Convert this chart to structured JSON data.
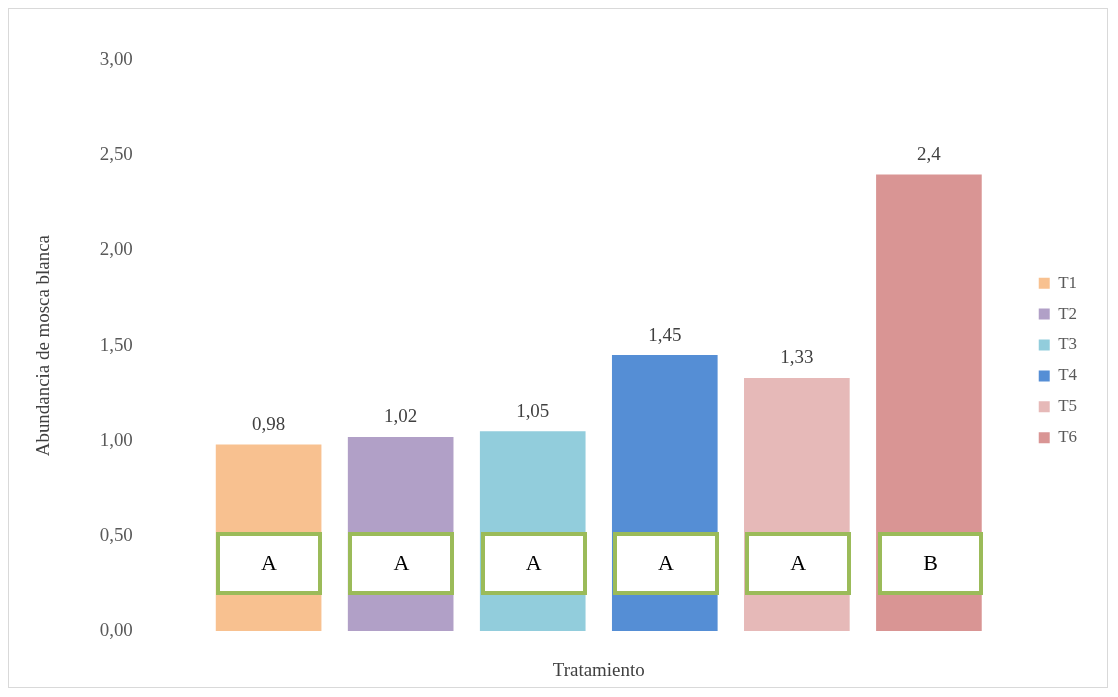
{
  "chart_data": {
    "type": "bar",
    "xlabel": "Tratamiento",
    "ylabel": "Abundancia de mosca blanca",
    "categories": [
      null
    ],
    "series": [
      {
        "name": "T1",
        "color": "#f8c190",
        "values": [
          0.98
        ],
        "value_labels": [
          "0,98"
        ]
      },
      {
        "name": "T2",
        "color": "#b1a0c7",
        "values": [
          1.02
        ],
        "value_labels": [
          "1,02"
        ]
      },
      {
        "name": "T3",
        "color": "#92cddc",
        "values": [
          1.05
        ],
        "value_labels": [
          "1,05"
        ]
      },
      {
        "name": "T4",
        "color": "#558ed5",
        "values": [
          1.45
        ],
        "value_labels": [
          "1,45"
        ]
      },
      {
        "name": "T5",
        "color": "#e6b9b8",
        "values": [
          1.33
        ],
        "value_labels": [
          "1,33"
        ]
      },
      {
        "name": "T6",
        "color": "#d99594",
        "values": [
          2.4
        ],
        "value_labels": [
          "2,4"
        ]
      }
    ],
    "annotations": [
      "A",
      "A",
      "A",
      "A",
      "A",
      "B"
    ],
    "ylim": [
      0,
      3
    ],
    "yticks": [
      {
        "value": 0,
        "label": "0,00"
      },
      {
        "value": 0.5,
        "label": "0,50"
      },
      {
        "value": 1,
        "label": "1,00"
      },
      {
        "value": 1.5,
        "label": "1,50"
      },
      {
        "value": 2,
        "label": "2,00"
      },
      {
        "value": 2.5,
        "label": "2,50"
      },
      {
        "value": 3,
        "label": "3,00"
      }
    ],
    "grid": false,
    "legend": "right"
  }
}
